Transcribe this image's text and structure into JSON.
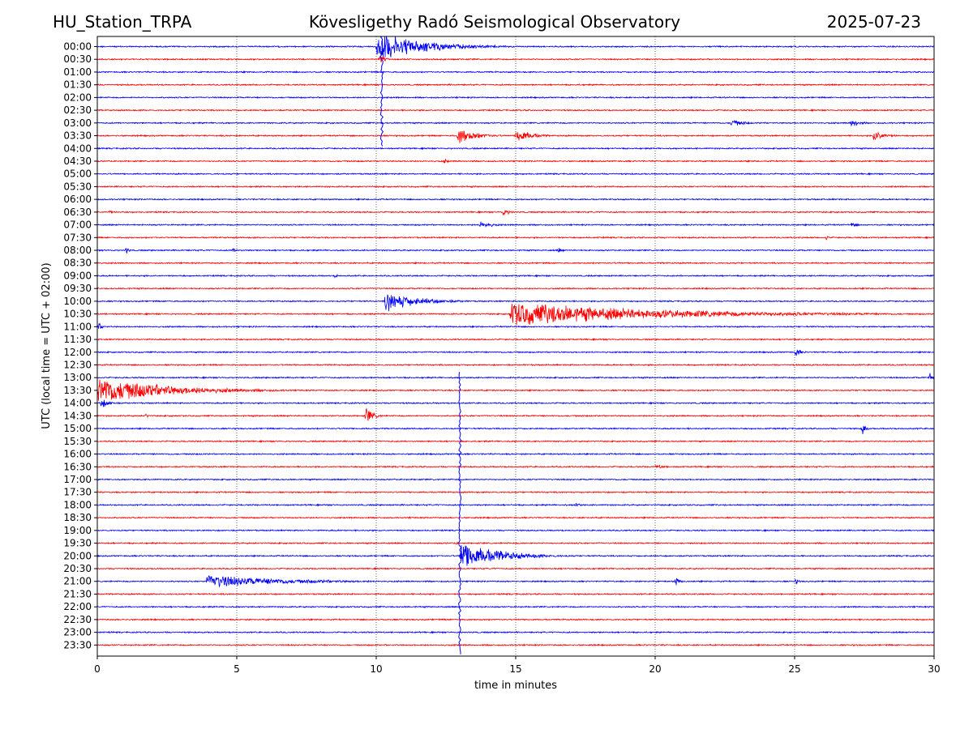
{
  "header": {
    "station": "HU_Station_TRPA",
    "observatory": "Kövesligethy Radó Seismological Observatory",
    "date": "2025-07-23"
  },
  "colors": {
    "even_trace": "#0000ff",
    "odd_trace": "#ff0000",
    "grid": "#000000"
  },
  "chart_data": {
    "type": "line",
    "title": "Kövesligethy Radó Seismological Observatory",
    "xlabel": "time in minutes",
    "ylabel": "UTC (local time = UTC + 02:00)",
    "xlim": [
      0,
      30
    ],
    "xticks": [
      0,
      5,
      10,
      15,
      20,
      25,
      30
    ],
    "xtick_labels": [
      "0",
      "5",
      "10",
      "15",
      "20",
      "25",
      "30"
    ],
    "grid_x": true,
    "rows": [
      "00:00",
      "00:30",
      "01:00",
      "01:30",
      "02:00",
      "02:30",
      "03:00",
      "03:30",
      "04:00",
      "04:30",
      "05:00",
      "05:30",
      "06:00",
      "06:30",
      "07:00",
      "07:30",
      "08:00",
      "08:30",
      "09:00",
      "09:30",
      "10:00",
      "10:30",
      "11:00",
      "11:30",
      "12:00",
      "12:30",
      "13:00",
      "13:30",
      "14:00",
      "14:30",
      "15:00",
      "15:30",
      "16:00",
      "16:30",
      "17:00",
      "17:30",
      "18:00",
      "18:30",
      "19:00",
      "19:30",
      "20:00",
      "20:30",
      "21:00",
      "21:30",
      "22:00",
      "22:30",
      "23:00",
      "23:30"
    ],
    "row_colors": "alternating blue/red",
    "events": [
      {
        "row": "00:00",
        "start_min": 10.0,
        "peak": 1.0,
        "duration_min": 5.0
      },
      {
        "row": "00:30",
        "start_min": 10.1,
        "peak": 0.35,
        "duration_min": 0.5
      },
      {
        "row": "03:00",
        "start_min": 22.7,
        "peak": 0.3,
        "duration_min": 1.2
      },
      {
        "row": "03:00",
        "start_min": 27.0,
        "peak": 0.35,
        "duration_min": 0.8
      },
      {
        "row": "03:30",
        "start_min": 12.9,
        "peak": 0.55,
        "duration_min": 2.0
      },
      {
        "row": "03:30",
        "start_min": 15.0,
        "peak": 0.55,
        "duration_min": 1.5
      },
      {
        "row": "03:30",
        "start_min": 27.8,
        "peak": 0.4,
        "duration_min": 1.2
      },
      {
        "row": "04:30",
        "start_min": 12.4,
        "peak": 0.15,
        "duration_min": 0.6
      },
      {
        "row": "06:30",
        "start_min": 0.4,
        "peak": 0.2,
        "duration_min": 0.2
      },
      {
        "row": "06:30",
        "start_min": 14.5,
        "peak": 0.25,
        "duration_min": 0.8
      },
      {
        "row": "07:00",
        "start_min": 13.7,
        "peak": 0.3,
        "duration_min": 1.2
      },
      {
        "row": "07:00",
        "start_min": 27.0,
        "peak": 0.2,
        "duration_min": 0.6
      },
      {
        "row": "07:30",
        "start_min": 26.1,
        "peak": 0.2,
        "duration_min": 0.2
      },
      {
        "row": "08:00",
        "start_min": 1.0,
        "peak": 0.3,
        "duration_min": 0.2
      },
      {
        "row": "08:00",
        "start_min": 4.8,
        "peak": 0.15,
        "duration_min": 1.0
      },
      {
        "row": "08:00",
        "start_min": 16.5,
        "peak": 0.2,
        "duration_min": 0.5
      },
      {
        "row": "09:00",
        "start_min": 8.5,
        "peak": 0.2,
        "duration_min": 0.2
      },
      {
        "row": "10:00",
        "start_min": 10.3,
        "peak": 0.7,
        "duration_min": 3.5
      },
      {
        "row": "10:30",
        "start_min": 14.8,
        "peak": 0.85,
        "duration_min": 15.2
      },
      {
        "row": "11:00",
        "start_min": 0.0,
        "peak": 0.25,
        "duration_min": 0.6
      },
      {
        "row": "12:00",
        "start_min": 25.0,
        "peak": 0.3,
        "duration_min": 0.6
      },
      {
        "row": "13:00",
        "start_min": 29.8,
        "peak": 0.35,
        "duration_min": 0.2
      },
      {
        "row": "13:30",
        "start_min": 0.0,
        "peak": 1.0,
        "duration_min": 7.0
      },
      {
        "row": "14:00",
        "start_min": 0.1,
        "peak": 0.35,
        "duration_min": 1.0
      },
      {
        "row": "14:30",
        "start_min": 1.7,
        "peak": 0.2,
        "duration_min": 0.2
      },
      {
        "row": "14:30",
        "start_min": 9.6,
        "peak": 0.55,
        "duration_min": 0.8
      },
      {
        "row": "15:00",
        "start_min": 27.4,
        "peak": 0.5,
        "duration_min": 0.3
      },
      {
        "row": "16:30",
        "start_min": 20.0,
        "peak": 0.15,
        "duration_min": 1.2
      },
      {
        "row": "18:00",
        "start_min": 17.1,
        "peak": 0.2,
        "duration_min": 0.5
      },
      {
        "row": "19:30",
        "start_min": 12.8,
        "peak": 0.15,
        "duration_min": 0.3
      },
      {
        "row": "20:00",
        "start_min": 13.0,
        "peak": 1.0,
        "duration_min": 4.0
      },
      {
        "row": "21:00",
        "start_min": 3.9,
        "peak": 0.45,
        "duration_min": 8.5
      },
      {
        "row": "21:00",
        "start_min": 20.7,
        "peak": 0.35,
        "duration_min": 0.4
      },
      {
        "row": "21:00",
        "start_min": 25.0,
        "peak": 0.2,
        "duration_min": 0.4
      }
    ],
    "spikes": [
      {
        "row": "00:00",
        "x_min": 10.2,
        "spans_rows": 8
      },
      {
        "row": "20:00",
        "x_min": 13.0,
        "spans_rows": 24
      }
    ]
  }
}
